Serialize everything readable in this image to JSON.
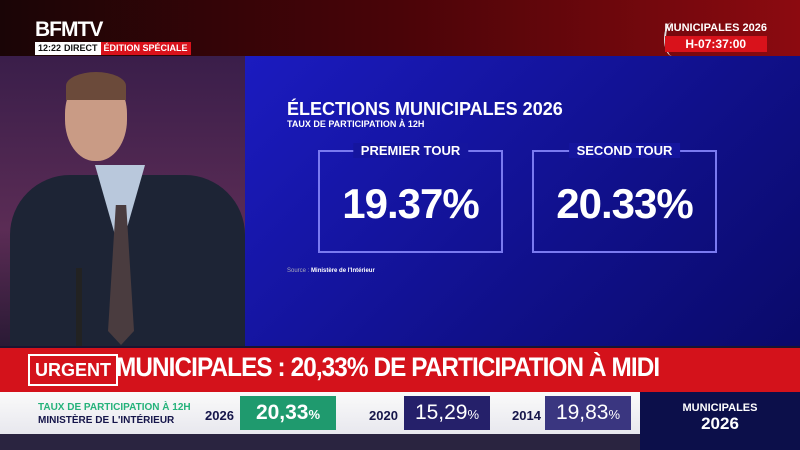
{
  "header": {
    "logo": "BFMTV",
    "time": "12:22",
    "live": "DIRECT",
    "edition": "ÉDITION SPÉCIALE",
    "event": "MUNICIPALES 2026",
    "countdown": "H-07:37:00"
  },
  "panel": {
    "title": "ÉLECTIONS MUNICIPALES 2026",
    "subtitle": "TAUX DE PARTICIPATION À 12H",
    "rounds": [
      {
        "label": "PREMIER TOUR",
        "value": "19.37%"
      },
      {
        "label": "SECOND TOUR",
        "value": "20.33%"
      }
    ],
    "source_label": "Source :",
    "source": "Ministère de l'Intérieur"
  },
  "urgent": {
    "badge": "URGENT",
    "headline": "MUNICIPALES : 20,33% DE PARTICIPATION À MIDI"
  },
  "lower": {
    "line1": "TAUX DE PARTICIPATION À 12H",
    "line2": "MINISTÈRE DE L'INTÉRIEUR",
    "stats": [
      {
        "year": "2026",
        "value": "20,33",
        "unit": "%",
        "color": "#1f9a6e"
      },
      {
        "year": "2020",
        "value": "15,29",
        "unit": "%",
        "color": "#25206a"
      },
      {
        "year": "2014",
        "value": "19,83",
        "unit": "%",
        "color": "#3a3680"
      }
    ],
    "logo_line1": "MUNICIPALES",
    "logo_line2": "2026"
  }
}
